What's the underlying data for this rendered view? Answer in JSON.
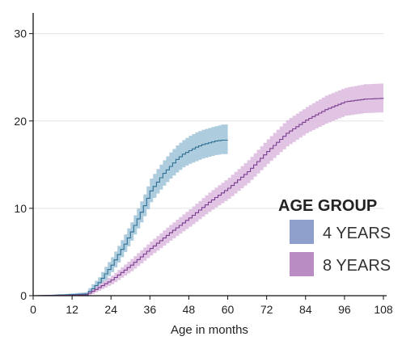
{
  "chart_data": {
    "type": "line",
    "xlabel": "Age in months",
    "ylabel": "",
    "xlim": [
      0,
      108
    ],
    "ylim": [
      0,
      32
    ],
    "x_ticks": [
      0,
      12,
      24,
      36,
      48,
      60,
      72,
      84,
      96,
      108
    ],
    "y_ticks": [
      0,
      10,
      20,
      30
    ],
    "grid": "horizontal",
    "legend": {
      "title": "AGE GROUP",
      "placement": "right",
      "entries": [
        "4 YEARS",
        "8 YEARS"
      ]
    },
    "series": [
      {
        "name": "4 YEARS",
        "line_color": "#2e6f93",
        "band_color": "#9fc3d8",
        "legend_color": "#8f9fcc",
        "x": [
          0,
          10,
          16,
          18,
          20,
          22,
          24,
          26,
          28,
          30,
          32,
          34,
          36,
          38,
          40,
          42,
          44,
          46,
          48,
          50,
          52,
          54,
          56,
          58,
          60
        ],
        "y": [
          0,
          0.1,
          0.2,
          0.8,
          1.5,
          2.5,
          3.5,
          4.7,
          5.9,
          7.3,
          8.8,
          10.3,
          12.0,
          13.0,
          14.0,
          14.8,
          15.6,
          16.2,
          16.6,
          17.0,
          17.3,
          17.5,
          17.7,
          17.8,
          17.8
        ],
        "lower": [
          0,
          0,
          0,
          0.4,
          0.9,
          1.8,
          2.7,
          3.8,
          5.0,
          6.3,
          7.7,
          9.1,
          10.7,
          11.7,
          12.6,
          13.4,
          14.1,
          14.7,
          15.1,
          15.4,
          15.7,
          15.9,
          16.1,
          16.2,
          16.2
        ],
        "upper": [
          0,
          0.2,
          0.4,
          1.3,
          2.1,
          3.3,
          4.4,
          5.7,
          7.0,
          8.4,
          10.0,
          11.6,
          13.4,
          14.5,
          15.5,
          16.4,
          17.2,
          17.8,
          18.3,
          18.7,
          19.0,
          19.2,
          19.4,
          19.6,
          19.6
        ]
      },
      {
        "name": "8 YEARS",
        "line_color": "#7a3d8f",
        "band_color": "#dcb8df",
        "legend_color": "#b98cc4",
        "x": [
          0,
          10,
          16,
          18,
          24,
          30,
          36,
          42,
          48,
          54,
          60,
          66,
          72,
          78,
          84,
          90,
          96,
          102,
          108
        ],
        "y": [
          0,
          0.05,
          0.1,
          0.5,
          1.8,
          3.5,
          5.4,
          7.2,
          8.9,
          10.7,
          12.3,
          14.2,
          16.5,
          18.6,
          20.1,
          21.3,
          22.2,
          22.5,
          22.6
        ],
        "lower": [
          0,
          0,
          0,
          0.2,
          1.3,
          2.8,
          4.6,
          6.3,
          7.9,
          9.6,
          11.1,
          12.9,
          15.1,
          17.1,
          18.6,
          19.7,
          20.6,
          20.9,
          21.0
        ],
        "upper": [
          0,
          0.1,
          0.2,
          0.8,
          2.3,
          4.2,
          6.2,
          8.1,
          9.9,
          11.8,
          13.5,
          15.5,
          17.9,
          20.1,
          21.6,
          22.9,
          23.8,
          24.2,
          24.3
        ]
      }
    ]
  }
}
